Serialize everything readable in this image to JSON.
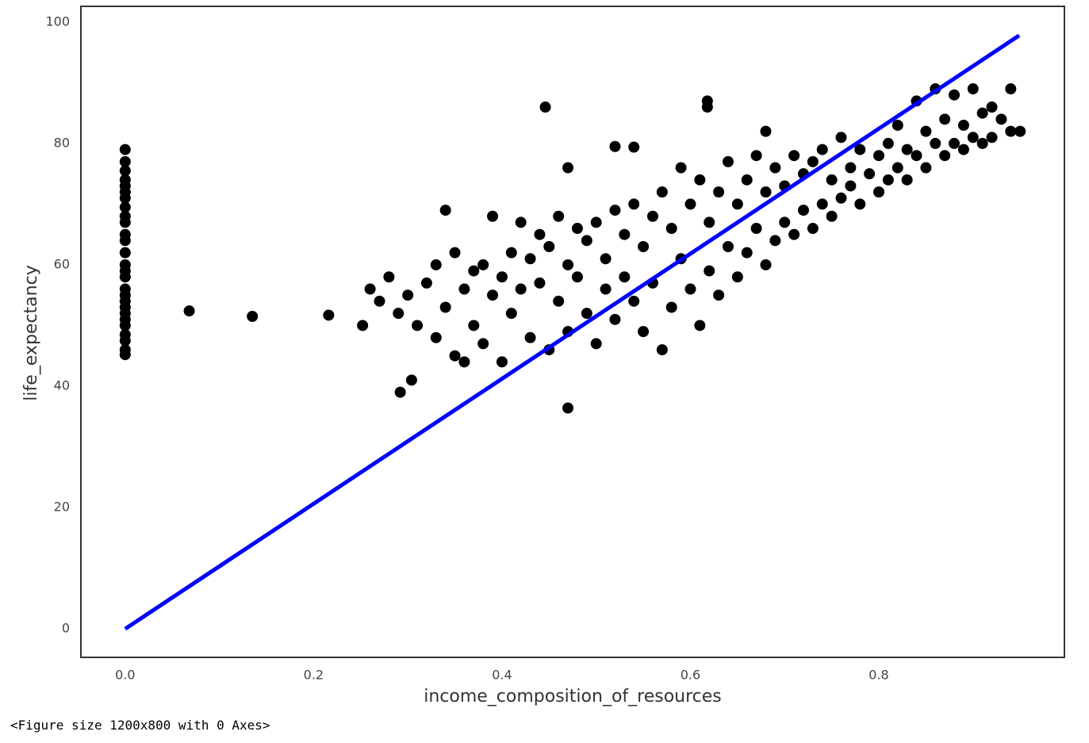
{
  "chart_data": {
    "type": "scatter",
    "xlabel": "income_composition_of_resources",
    "ylabel": "life_expectancy",
    "xlim": [
      -0.047,
      0.997
    ],
    "ylim": [
      -4.7,
      102.6
    ],
    "xticks": [
      {
        "value": 0,
        "label": "0.0"
      },
      0.2,
      0.4,
      0.6,
      0.8
    ],
    "yticks": [
      0,
      20,
      40,
      60,
      80,
      100
    ],
    "grid": false,
    "series": [
      {
        "type": "scatter",
        "color": "#000000",
        "x": [
          0,
          0,
          0,
          0,
          0,
          0,
          0,
          0,
          0,
          0,
          0,
          0,
          0,
          0,
          0,
          0,
          0,
          0,
          0,
          0,
          0,
          0,
          0,
          0,
          0,
          0,
          0,
          0.068,
          0.135,
          0.216,
          0.252,
          0.292,
          0.304,
          0.47,
          0.446,
          0.618,
          0.618,
          0.47,
          0.52,
          0.54,
          0.68,
          0.26,
          0.27,
          0.28,
          0.29,
          0.3,
          0.31,
          0.32,
          0.33,
          0.33,
          0.34,
          0.34,
          0.35,
          0.35,
          0.36,
          0.36,
          0.37,
          0.37,
          0.38,
          0.38,
          0.39,
          0.39,
          0.4,
          0.4,
          0.41,
          0.41,
          0.42,
          0.42,
          0.43,
          0.43,
          0.44,
          0.44,
          0.45,
          0.45,
          0.46,
          0.46,
          0.47,
          0.47,
          0.48,
          0.48,
          0.49,
          0.49,
          0.5,
          0.5,
          0.51,
          0.51,
          0.52,
          0.52,
          0.53,
          0.53,
          0.54,
          0.54,
          0.55,
          0.55,
          0.56,
          0.56,
          0.57,
          0.57,
          0.58,
          0.58,
          0.59,
          0.59,
          0.6,
          0.6,
          0.61,
          0.61,
          0.62,
          0.62,
          0.63,
          0.63,
          0.64,
          0.64,
          0.65,
          0.65,
          0.66,
          0.66,
          0.67,
          0.67,
          0.68,
          0.68,
          0.69,
          0.69,
          0.7,
          0.7,
          0.71,
          0.71,
          0.72,
          0.72,
          0.73,
          0.73,
          0.74,
          0.74,
          0.75,
          0.75,
          0.76,
          0.76,
          0.77,
          0.77,
          0.78,
          0.78,
          0.79,
          0.8,
          0.8,
          0.81,
          0.81,
          0.82,
          0.82,
          0.83,
          0.83,
          0.84,
          0.84,
          0.85,
          0.85,
          0.86,
          0.86,
          0.87,
          0.87,
          0.88,
          0.88,
          0.89,
          0.89,
          0.9,
          0.9,
          0.91,
          0.91,
          0.92,
          0.92,
          0.93,
          0.94,
          0.95,
          0.94
        ],
        "values": [
          79,
          77,
          75.5,
          74,
          73,
          72,
          71,
          69.5,
          68,
          67,
          65,
          64,
          62,
          60,
          59,
          58,
          56,
          55,
          54,
          53,
          52,
          51,
          50,
          48.5,
          47.5,
          46,
          45.2,
          52.4,
          51.5,
          51.7,
          50,
          39,
          41,
          36.4,
          86,
          87,
          86,
          76,
          79.5,
          79.4,
          82,
          56,
          54,
          58,
          52,
          55,
          50,
          57,
          48,
          60,
          53,
          69,
          45,
          62,
          56,
          44,
          59,
          50,
          47,
          60,
          55,
          68,
          58,
          44,
          62,
          52,
          67,
          56,
          48,
          61,
          65,
          57,
          46,
          63,
          68,
          54,
          60,
          49,
          66,
          58,
          52,
          64,
          67,
          47,
          61,
          56,
          69,
          51,
          65,
          58,
          70,
          54,
          63,
          49,
          68,
          57,
          72,
          46,
          66,
          53,
          76,
          61,
          70,
          56,
          74,
          50,
          67,
          59,
          72,
          55,
          77,
          63,
          70,
          58,
          74,
          62,
          78,
          66,
          72,
          60,
          76,
          64,
          73,
          67,
          78,
          65,
          75,
          69,
          77,
          66,
          79,
          70,
          74,
          68,
          81,
          71,
          76,
          73,
          79,
          70,
          75,
          78,
          72,
          80,
          74,
          83,
          76,
          79,
          74,
          87,
          78,
          82,
          76,
          89,
          80,
          84,
          78,
          88,
          80,
          83,
          79,
          89,
          81,
          85,
          80,
          86,
          81,
          84,
          82,
          82,
          89
        ]
      },
      {
        "type": "line",
        "color": "#0000ff",
        "x": [
          0,
          0.949
        ],
        "values": [
          0,
          97.8
        ]
      }
    ]
  },
  "output_text": "<Figure size 1200x800 with 0 Axes>"
}
